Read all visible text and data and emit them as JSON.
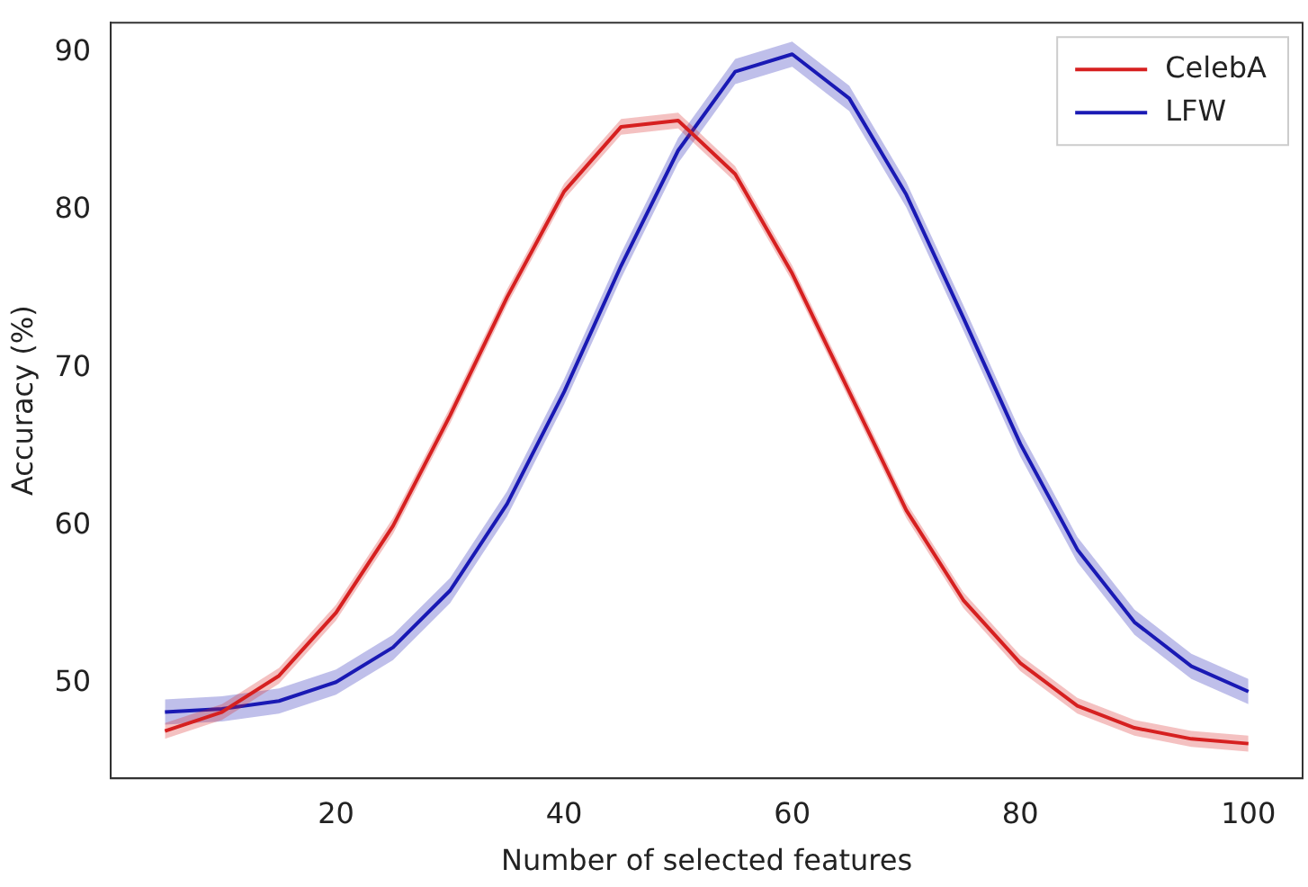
{
  "chart_data": {
    "type": "line",
    "xlabel": "Number of selected features",
    "ylabel": "Accuracy (%)",
    "x": [
      5,
      10,
      15,
      20,
      25,
      30,
      35,
      40,
      45,
      50,
      55,
      60,
      65,
      70,
      75,
      80,
      85,
      90,
      95,
      100
    ],
    "xlim": [
      0.25,
      104.75
    ],
    "xticks": [
      20,
      40,
      60,
      80,
      100
    ],
    "ylim": [
      44,
      91.9
    ],
    "yticks": [
      50,
      60,
      70,
      80,
      90
    ],
    "legend": "top right",
    "grid": false,
    "marker": "none",
    "line_style": "solid",
    "series": [
      {
        "name": "CelebA",
        "color": "#d62020",
        "values": [
          47.0,
          48.2,
          50.5,
          54.5,
          60.0,
          67.0,
          74.5,
          81.2,
          85.3,
          85.7,
          82.3,
          76.0,
          68.5,
          61.0,
          55.3,
          51.3,
          48.6,
          47.2,
          46.5,
          46.2
        ],
        "lower": [
          46.5,
          47.7,
          50.0,
          54.0,
          59.5,
          66.5,
          74.0,
          80.7,
          84.8,
          85.2,
          81.8,
          75.5,
          68.0,
          60.5,
          54.8,
          50.8,
          48.1,
          46.7,
          46.0,
          45.7
        ],
        "upper": [
          47.5,
          48.7,
          51.0,
          55.0,
          60.5,
          67.5,
          75.0,
          81.7,
          85.8,
          86.2,
          82.8,
          76.5,
          69.0,
          61.5,
          55.8,
          51.8,
          49.1,
          47.7,
          47.0,
          46.7
        ]
      },
      {
        "name": "LFW",
        "color": "#1a1ab4",
        "values": [
          48.2,
          48.4,
          48.9,
          50.1,
          52.3,
          55.9,
          61.4,
          68.5,
          76.5,
          83.8,
          88.8,
          89.9,
          87.1,
          81.0,
          73.2,
          65.2,
          58.5,
          53.9,
          51.1,
          49.5
        ],
        "lower": [
          47.4,
          47.6,
          48.1,
          49.3,
          51.5,
          55.1,
          60.6,
          67.7,
          75.7,
          83.0,
          88.0,
          89.1,
          86.3,
          80.2,
          72.4,
          64.4,
          57.7,
          53.1,
          50.3,
          48.7
        ],
        "upper": [
          49.0,
          49.2,
          49.7,
          50.9,
          53.1,
          56.7,
          62.2,
          69.3,
          77.3,
          84.6,
          89.6,
          90.7,
          87.9,
          81.8,
          74.0,
          66.0,
          59.3,
          54.7,
          51.9,
          50.3
        ]
      }
    ]
  }
}
